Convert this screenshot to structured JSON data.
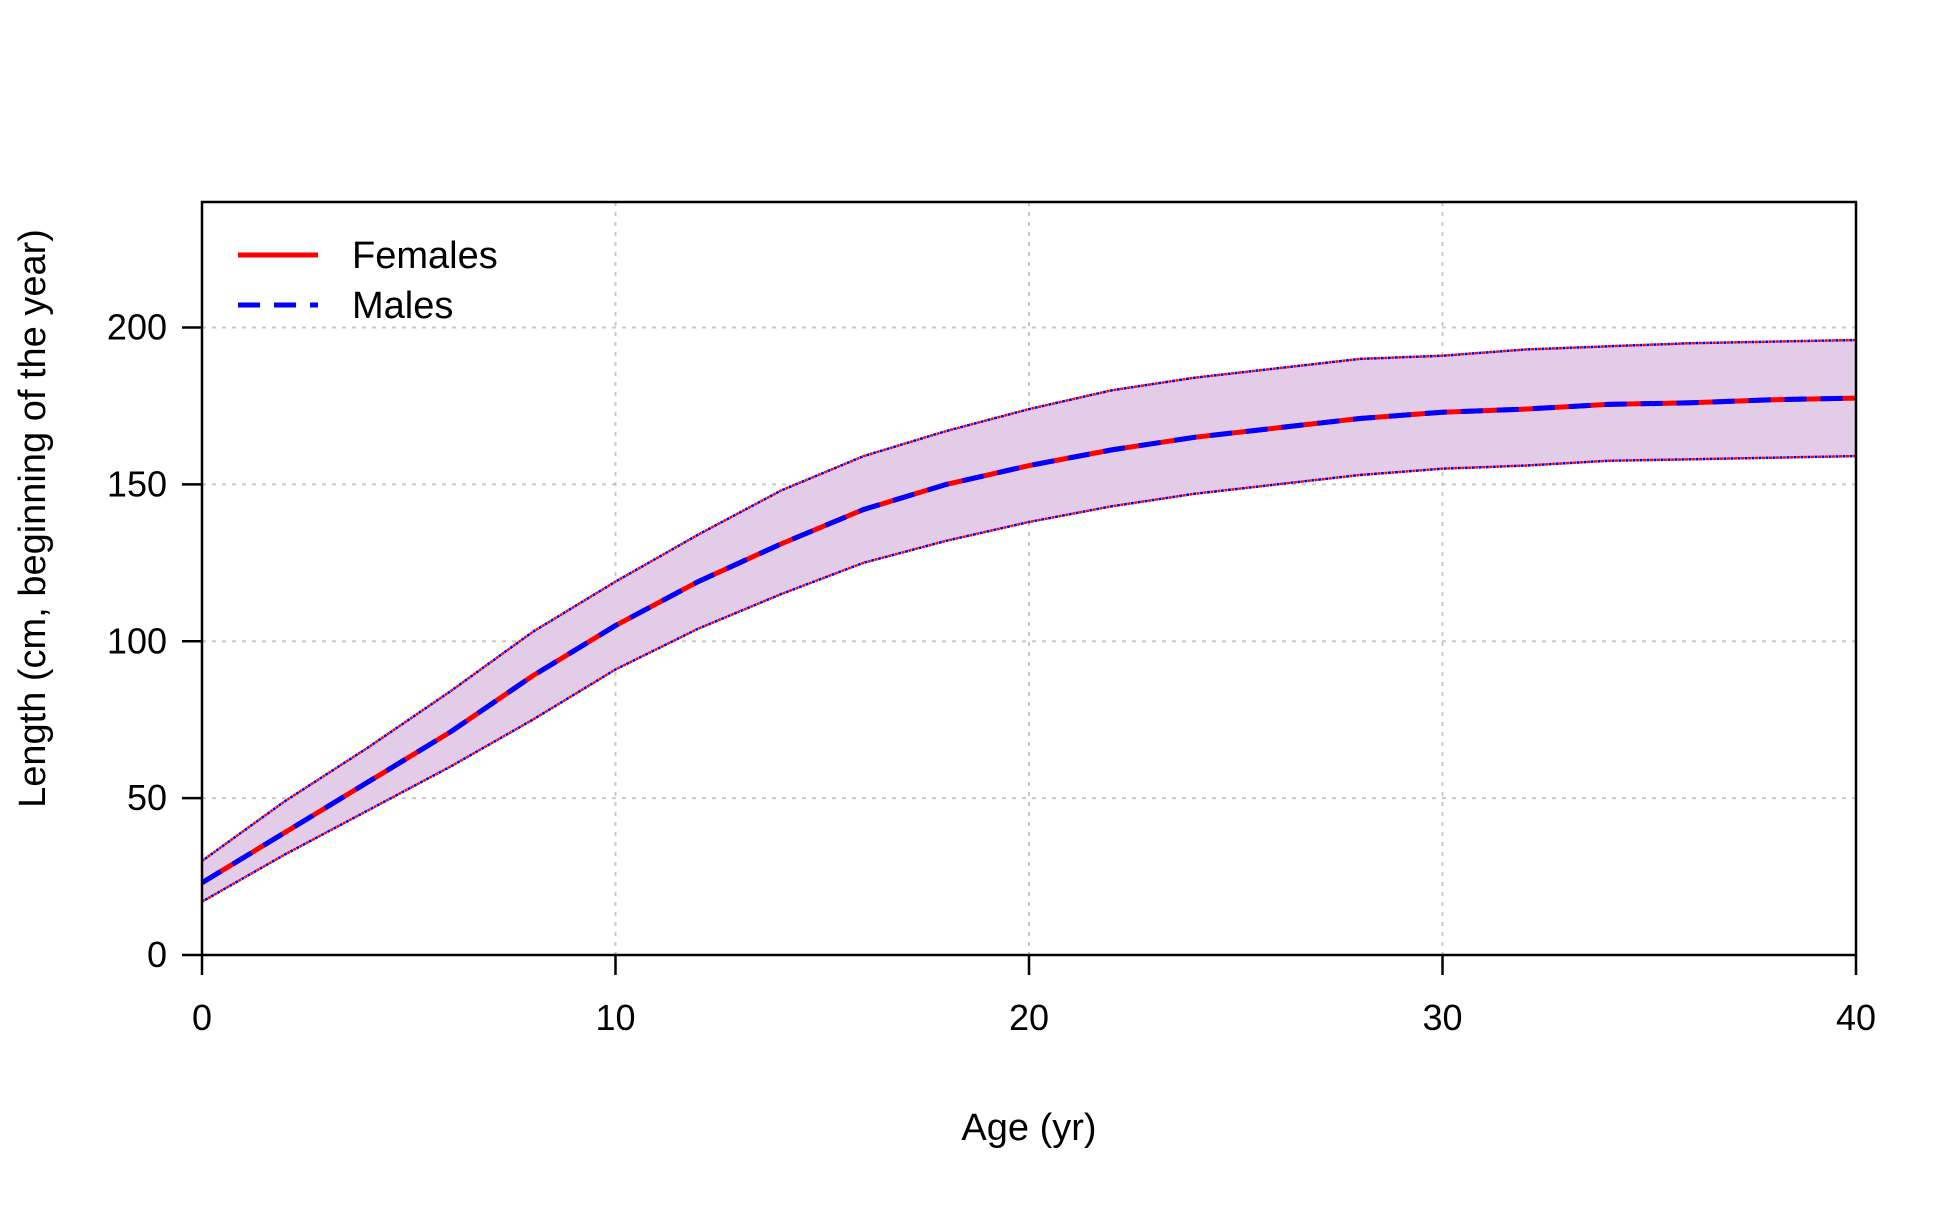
{
  "chart_data": {
    "type": "line",
    "xlabel": "Age (yr)",
    "ylabel": "Length (cm, beginning of the year)",
    "xlim": [
      0,
      40
    ],
    "ylim": [
      0,
      240
    ],
    "xticks": [
      0,
      10,
      20,
      30,
      40
    ],
    "yticks": [
      0,
      50,
      100,
      150,
      200
    ],
    "grid": true,
    "legend_position": "top-left",
    "band_color": "#e3cce8",
    "series": [
      {
        "name": "Females",
        "color": "#ff0000",
        "style": "solid",
        "x": [
          0,
          2,
          4,
          6,
          8,
          10,
          12,
          14,
          16,
          18,
          20,
          22,
          24,
          26,
          28,
          30,
          32,
          34,
          36,
          38,
          40
        ],
        "y": [
          23,
          39,
          55,
          71,
          89,
          105,
          119,
          131,
          142,
          150,
          156,
          161,
          165,
          168,
          171,
          173,
          174,
          175.5,
          176,
          177,
          177.5
        ],
        "lower": [
          17,
          32,
          46,
          60,
          75,
          91,
          104,
          115,
          125,
          132,
          138,
          143,
          147,
          150,
          153,
          155,
          156,
          157.5,
          158,
          158.5,
          159
        ],
        "upper": [
          30,
          49,
          66,
          84,
          103,
          119,
          134,
          148,
          159,
          167,
          174,
          180,
          184,
          187,
          190,
          191,
          193,
          194,
          195,
          195.5,
          196
        ]
      },
      {
        "name": "Males",
        "color": "#0000ff",
        "style": "dashed",
        "x": [
          0,
          2,
          4,
          6,
          8,
          10,
          12,
          14,
          16,
          18,
          20,
          22,
          24,
          26,
          28,
          30,
          32,
          34,
          36,
          38,
          40
        ],
        "y": [
          23,
          39,
          55,
          71,
          89,
          105,
          119,
          131,
          142,
          150,
          156,
          161,
          165,
          168,
          171,
          173,
          174,
          175.5,
          176,
          177,
          177.5
        ],
        "lower": [
          17,
          32,
          46,
          60,
          75,
          91,
          104,
          115,
          125,
          132,
          138,
          143,
          147,
          150,
          153,
          155,
          156,
          157.5,
          158,
          158.5,
          159
        ],
        "upper": [
          30,
          49,
          66,
          84,
          103,
          119,
          134,
          148,
          159,
          167,
          174,
          180,
          184,
          187,
          190,
          191,
          193,
          194,
          195,
          195.5,
          196
        ]
      }
    ]
  }
}
